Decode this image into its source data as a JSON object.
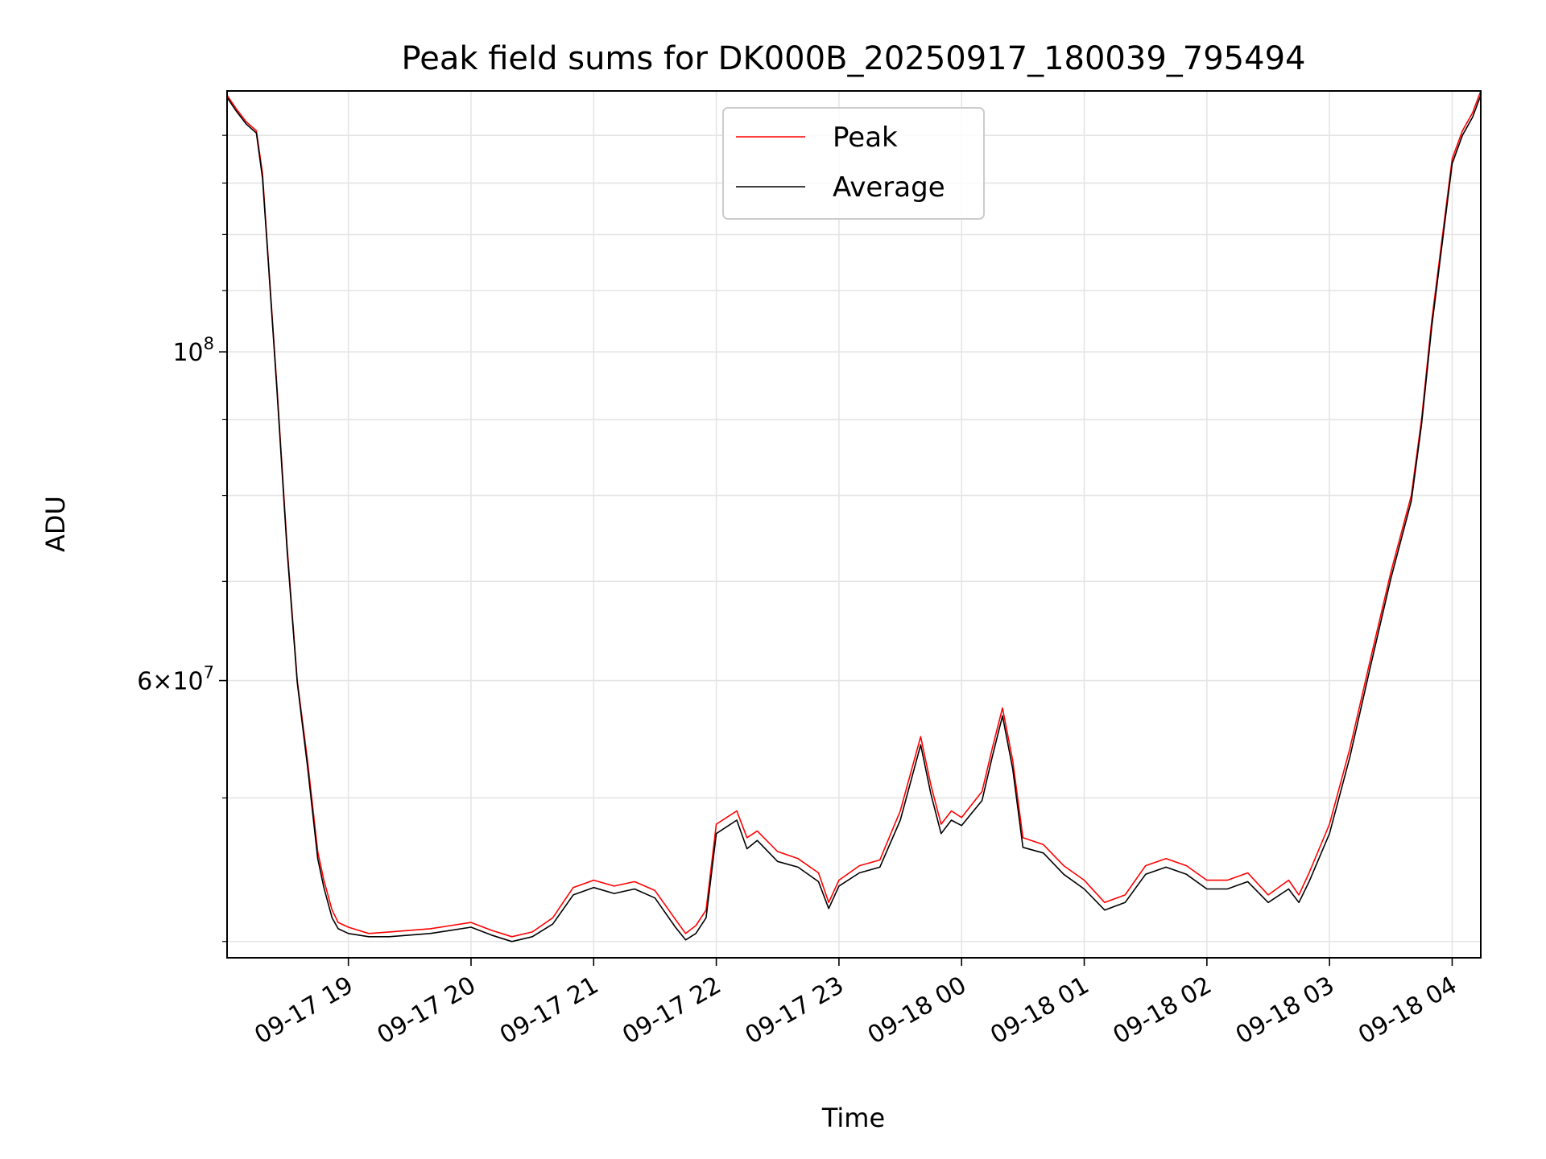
{
  "chart_data": {
    "type": "line",
    "title": "Peak field sums for DK000B_20250917_180039_795494",
    "xlabel": "Time",
    "ylabel": "ADU",
    "yscale": "log",
    "ylim": [
      39000000,
      150000000
    ],
    "xlim": [
      "2025-09-17 18:00:39",
      "2025-09-18 04:14:00"
    ],
    "grid": true,
    "legend": {
      "placement": "upper-center",
      "entries": [
        "Peak",
        "Average"
      ]
    },
    "x_tick_labels": [
      "09-17 19",
      "09-17 20",
      "09-17 21",
      "09-17 22",
      "09-17 23",
      "09-18 00",
      "09-18 01",
      "09-18 02",
      "09-18 03",
      "09-18 04"
    ],
    "y_tick_labels": [
      {
        "value": 100000000,
        "base": "10",
        "exp": "8",
        "mantissa": ""
      },
      {
        "value": 60000000,
        "base": "10",
        "exp": "7",
        "mantissa": "6"
      }
    ],
    "series": [
      {
        "name": "Peak",
        "color": "#ff0000",
        "x": [
          "2025-09-17 18:00:39",
          "2025-09-17 18:05",
          "2025-09-17 18:10",
          "2025-09-17 18:15",
          "2025-09-17 18:18",
          "2025-09-17 18:20",
          "2025-09-17 18:25",
          "2025-09-17 18:30",
          "2025-09-17 18:35",
          "2025-09-17 18:40",
          "2025-09-17 18:45",
          "2025-09-17 18:48",
          "2025-09-17 18:52",
          "2025-09-17 18:55",
          "2025-09-17 19:00",
          "2025-09-17 19:10",
          "2025-09-17 19:20",
          "2025-09-17 19:30",
          "2025-09-17 19:40",
          "2025-09-17 19:50",
          "2025-09-17 20:00",
          "2025-09-17 20:10",
          "2025-09-17 20:20",
          "2025-09-17 20:30",
          "2025-09-17 20:40",
          "2025-09-17 20:50",
          "2025-09-17 21:00",
          "2025-09-17 21:10",
          "2025-09-17 21:20",
          "2025-09-17 21:30",
          "2025-09-17 21:40",
          "2025-09-17 21:45",
          "2025-09-17 21:50",
          "2025-09-17 21:55",
          "2025-09-17 22:00",
          "2025-09-17 22:10",
          "2025-09-17 22:15",
          "2025-09-17 22:20",
          "2025-09-17 22:30",
          "2025-09-17 22:40",
          "2025-09-17 22:50",
          "2025-09-17 22:55",
          "2025-09-17 23:00",
          "2025-09-17 23:10",
          "2025-09-17 23:20",
          "2025-09-17 23:30",
          "2025-09-17 23:40",
          "2025-09-17 23:45",
          "2025-09-17 23:50",
          "2025-09-17 23:55",
          "2025-09-18 00:00",
          "2025-09-18 00:10",
          "2025-09-18 00:15",
          "2025-09-18 00:20",
          "2025-09-18 00:25",
          "2025-09-18 00:30",
          "2025-09-18 00:40",
          "2025-09-18 00:50",
          "2025-09-18 01:00",
          "2025-09-18 01:10",
          "2025-09-18 01:20",
          "2025-09-18 01:30",
          "2025-09-18 01:40",
          "2025-09-18 01:50",
          "2025-09-18 02:00",
          "2025-09-18 02:10",
          "2025-09-18 02:20",
          "2025-09-18 02:30",
          "2025-09-18 02:40",
          "2025-09-18 02:45",
          "2025-09-18 02:50",
          "2025-09-18 03:00",
          "2025-09-18 03:10",
          "2025-09-18 03:20",
          "2025-09-18 03:30",
          "2025-09-18 03:40",
          "2025-09-18 03:45",
          "2025-09-18 03:50",
          "2025-09-18 04:00",
          "2025-09-18 04:05",
          "2025-09-18 04:10",
          "2025-09-18 04:14"
        ],
        "y": [
          149000000,
          146000000,
          143000000,
          141000000,
          132000000,
          120000000,
          95000000,
          74000000,
          60000000,
          53000000,
          46000000,
          44000000,
          42000000,
          41200000,
          40900000,
          40500000,
          40600000,
          40700000,
          40800000,
          41000000,
          41200000,
          40700000,
          40300000,
          40600000,
          41500000,
          43500000,
          44000000,
          43600000,
          43900000,
          43300000,
          41400000,
          40500000,
          41000000,
          42000000,
          48000000,
          49000000,
          47000000,
          47500000,
          46000000,
          45500000,
          44500000,
          42500000,
          44000000,
          45000000,
          45400000,
          49000000,
          55000000,
          51000000,
          48000000,
          49000000,
          48500000,
          50500000,
          54000000,
          57500000,
          53000000,
          47000000,
          46500000,
          45000000,
          44000000,
          42500000,
          43000000,
          45000000,
          45500000,
          45000000,
          44000000,
          44000000,
          44500000,
          43000000,
          44000000,
          43000000,
          44500000,
          48000000,
          54000000,
          62000000,
          71000000,
          80000000,
          90000000,
          105000000,
          135000000,
          141000000,
          145000000,
          150000000
        ]
      },
      {
        "name": "Average",
        "color": "#000000",
        "x": [
          "2025-09-17 18:00:39",
          "2025-09-17 18:05",
          "2025-09-17 18:10",
          "2025-09-17 18:15",
          "2025-09-17 18:18",
          "2025-09-17 18:20",
          "2025-09-17 18:25",
          "2025-09-17 18:30",
          "2025-09-17 18:35",
          "2025-09-17 18:40",
          "2025-09-17 18:45",
          "2025-09-17 18:48",
          "2025-09-17 18:52",
          "2025-09-17 18:55",
          "2025-09-17 19:00",
          "2025-09-17 19:10",
          "2025-09-17 19:20",
          "2025-09-17 19:30",
          "2025-09-17 19:40",
          "2025-09-17 19:50",
          "2025-09-17 20:00",
          "2025-09-17 20:10",
          "2025-09-17 20:20",
          "2025-09-17 20:30",
          "2025-09-17 20:40",
          "2025-09-17 20:50",
          "2025-09-17 21:00",
          "2025-09-17 21:10",
          "2025-09-17 21:20",
          "2025-09-17 21:30",
          "2025-09-17 21:40",
          "2025-09-17 21:45",
          "2025-09-17 21:50",
          "2025-09-17 21:55",
          "2025-09-17 22:00",
          "2025-09-17 22:10",
          "2025-09-17 22:15",
          "2025-09-17 22:20",
          "2025-09-17 22:30",
          "2025-09-17 22:40",
          "2025-09-17 22:50",
          "2025-09-17 22:55",
          "2025-09-17 23:00",
          "2025-09-17 23:10",
          "2025-09-17 23:20",
          "2025-09-17 23:30",
          "2025-09-17 23:40",
          "2025-09-17 23:45",
          "2025-09-17 23:50",
          "2025-09-17 23:55",
          "2025-09-18 00:00",
          "2025-09-18 00:10",
          "2025-09-18 00:15",
          "2025-09-18 00:20",
          "2025-09-18 00:25",
          "2025-09-18 00:30",
          "2025-09-18 00:40",
          "2025-09-18 00:50",
          "2025-09-18 01:00",
          "2025-09-18 01:10",
          "2025-09-18 01:20",
          "2025-09-18 01:30",
          "2025-09-18 01:40",
          "2025-09-18 01:50",
          "2025-09-18 02:00",
          "2025-09-18 02:10",
          "2025-09-18 02:20",
          "2025-09-18 02:30",
          "2025-09-18 02:40",
          "2025-09-18 02:45",
          "2025-09-18 02:50",
          "2025-09-18 03:00",
          "2025-09-18 03:10",
          "2025-09-18 03:20",
          "2025-09-18 03:30",
          "2025-09-18 03:40",
          "2025-09-18 03:45",
          "2025-09-18 03:50",
          "2025-09-18 04:00",
          "2025-09-18 04:05",
          "2025-09-18 04:10",
          "2025-09-18 04:14"
        ],
        "y": [
          148500000,
          145500000,
          142500000,
          140500000,
          131000000,
          119500000,
          94500000,
          73500000,
          59800000,
          52500000,
          45500000,
          43500000,
          41500000,
          40800000,
          40500000,
          40300000,
          40300000,
          40400000,
          40500000,
          40700000,
          40900000,
          40400000,
          40000000,
          40300000,
          41100000,
          43000000,
          43500000,
          43100000,
          43400000,
          42800000,
          40900000,
          40100000,
          40500000,
          41500000,
          47300000,
          48300000,
          46200000,
          46800000,
          45300000,
          44900000,
          43900000,
          42100000,
          43600000,
          44500000,
          44900000,
          48300000,
          54300000,
          50300000,
          47300000,
          48300000,
          47900000,
          49800000,
          53300000,
          56800000,
          52300000,
          46300000,
          45900000,
          44400000,
          43400000,
          42000000,
          42500000,
          44400000,
          44900000,
          44400000,
          43400000,
          43400000,
          43900000,
          42500000,
          43400000,
          42500000,
          43900000,
          47300000,
          53300000,
          61300000,
          70300000,
          79300000,
          89300000,
          104000000,
          134000000,
          140000000,
          144000000,
          149000000
        ]
      }
    ]
  }
}
